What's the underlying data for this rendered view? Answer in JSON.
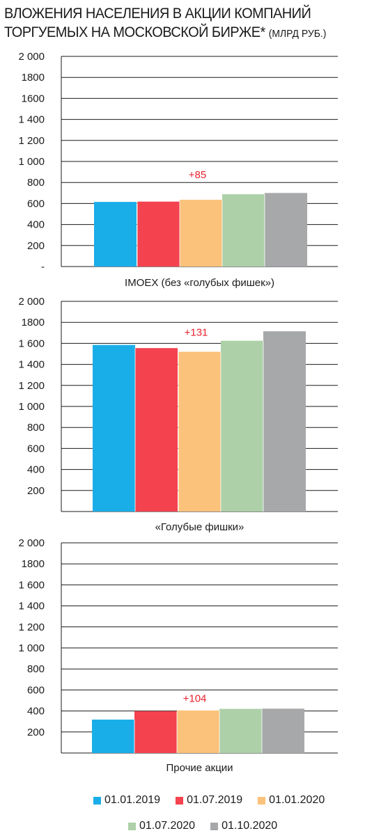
{
  "title_line1": "ВЛОЖЕНИЯ НАСЕЛЕНИЯ В АКЦИИ КОМПАНИЙ",
  "title_line2": "ТОРГУЕМЫХ НА МОСКОВСКОЙ БИРЖЕ*",
  "title_unit": "(МЛРД РУБ.)",
  "legend": [
    {
      "label": "01.01.2019",
      "color": "#1aaee8"
    },
    {
      "label": "01.07.2019",
      "color": "#f4424f"
    },
    {
      "label": "01.01.2020",
      "color": "#fbc27b"
    },
    {
      "label": "01.07.2020",
      "color": "#add0a8"
    },
    {
      "label": "01.10.2020",
      "color": "#a7a8aa"
    }
  ],
  "chart_data": [
    {
      "type": "bar",
      "xlabel": "IMOEX (без «голубых фишек»)",
      "ylim": [
        0,
        2000
      ],
      "yticks": [
        {
          "value": 0,
          "label": "-"
        },
        {
          "value": 200,
          "label": "200"
        },
        {
          "value": 400,
          "label": "400"
        },
        {
          "value": 600,
          "label": "600"
        },
        {
          "value": 800,
          "label": "800"
        },
        {
          "value": 1000,
          "label": "1 000"
        },
        {
          "value": 1200,
          "label": "1 200"
        },
        {
          "value": 1400,
          "label": "1 400"
        },
        {
          "value": 1600,
          "label": "1600"
        },
        {
          "value": 1800,
          "label": "1800"
        },
        {
          "value": 2000,
          "label": "2 000"
        }
      ],
      "categories": [
        "01.01.2019",
        "01.07.2019",
        "01.01.2020",
        "01.07.2020",
        "01.10.2020"
      ],
      "values": [
        615,
        618,
        635,
        688,
        700
      ],
      "annotation": "+85",
      "grid": true
    },
    {
      "type": "bar",
      "xlabel": "«Голубые фишки»",
      "ylim": [
        0,
        2000
      ],
      "yticks": [
        {
          "value": 200,
          "label": "200"
        },
        {
          "value": 400,
          "label": "400"
        },
        {
          "value": 600,
          "label": "600"
        },
        {
          "value": 800,
          "label": "800"
        },
        {
          "value": 1000,
          "label": "1 000"
        },
        {
          "value": 1200,
          "label": "1 200"
        },
        {
          "value": 1400,
          "label": "1 400"
        },
        {
          "value": 1600,
          "label": "1 600"
        },
        {
          "value": 1800,
          "label": "1800"
        },
        {
          "value": 2000,
          "label": "2 000"
        }
      ],
      "categories": [
        "01.01.2019",
        "01.07.2019",
        "01.01.2020",
        "01.07.2020",
        "01.10.2020"
      ],
      "values": [
        1585,
        1555,
        1520,
        1625,
        1715
      ],
      "annotation": "+131",
      "grid": true
    },
    {
      "type": "bar",
      "xlabel": "Прочие акции",
      "ylim": [
        0,
        2000
      ],
      "yticks": [
        {
          "value": 200,
          "label": "200"
        },
        {
          "value": 400,
          "label": "400"
        },
        {
          "value": 600,
          "label": "600"
        },
        {
          "value": 800,
          "label": "800"
        },
        {
          "value": 1000,
          "label": "1 000"
        },
        {
          "value": 1200,
          "label": "1 200"
        },
        {
          "value": 1400,
          "label": "1 400"
        },
        {
          "value": 1600,
          "label": "1 600"
        },
        {
          "value": 1800,
          "label": "1800"
        },
        {
          "value": 2000,
          "label": "2 000"
        }
      ],
      "categories": [
        "01.01.2019",
        "01.07.2019",
        "01.01.2020",
        "01.07.2020",
        "01.10.2020"
      ],
      "values": [
        318,
        398,
        405,
        420,
        422
      ],
      "annotation": "+104",
      "grid": true
    }
  ]
}
